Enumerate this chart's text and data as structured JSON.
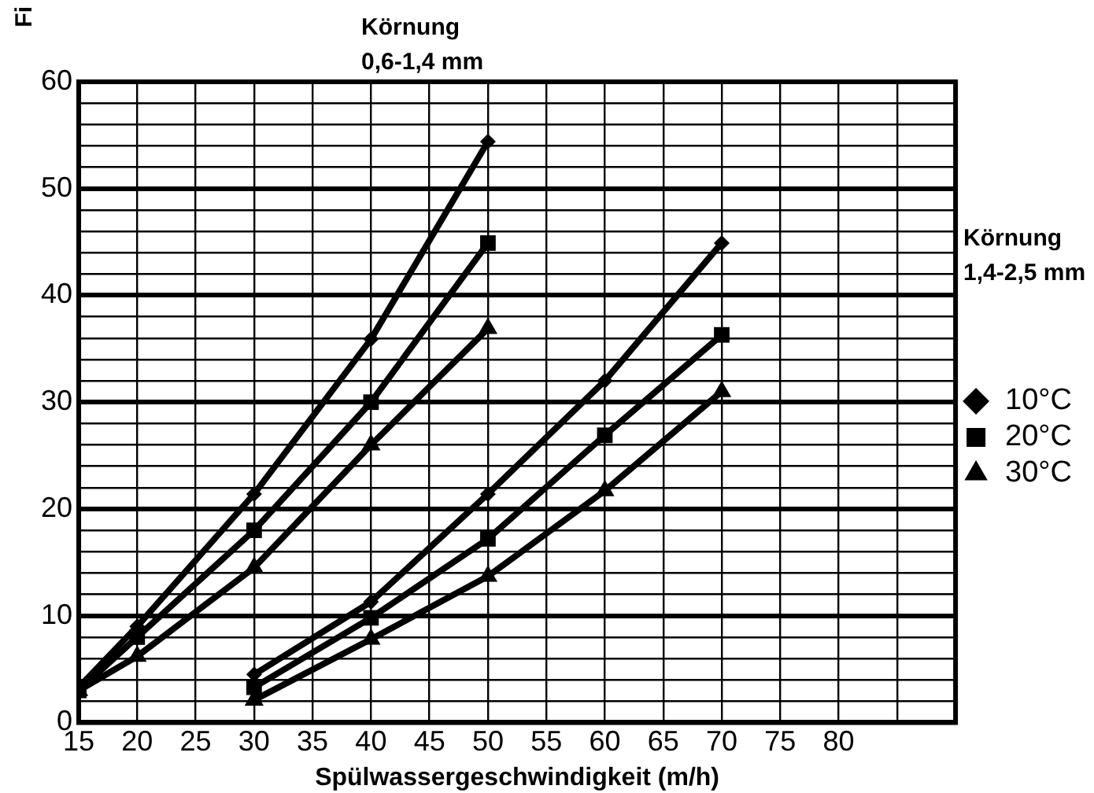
{
  "chart_data": {
    "type": "line",
    "ylabel": "Fi",
    "xlabel": "Spülwassergeschwindigkeit (m/h)",
    "annotations": [
      "Körnung 0,6-1,4 mm",
      "Körnung 1,4-2,5 mm"
    ],
    "xlim": [
      15,
      90
    ],
    "ylim": [
      0,
      60
    ],
    "xticks": [
      15,
      20,
      25,
      30,
      35,
      40,
      45,
      50,
      55,
      60,
      65,
      70,
      75,
      80,
      {
        "value": 85,
        "label": null
      },
      {
        "value": 90,
        "label": null
      }
    ],
    "yticks": [
      0,
      {
        "value": 2,
        "label": null
      },
      {
        "value": 4,
        "label": null
      },
      {
        "value": 6,
        "label": null
      },
      {
        "value": 8,
        "label": null
      },
      10,
      {
        "value": 12,
        "label": null
      },
      {
        "value": 14,
        "label": null
      },
      {
        "value": 16,
        "label": null
      },
      {
        "value": 18,
        "label": null
      },
      20,
      {
        "value": 22,
        "label": null
      },
      {
        "value": 24,
        "label": null
      },
      {
        "value": 26,
        "label": null
      },
      {
        "value": 28,
        "label": null
      },
      30,
      {
        "value": 32,
        "label": null
      },
      {
        "value": 34,
        "label": null
      },
      {
        "value": 36,
        "label": null
      },
      {
        "value": 38,
        "label": null
      },
      40,
      {
        "value": 42,
        "label": null
      },
      {
        "value": 44,
        "label": null
      },
      {
        "value": 46,
        "label": null
      },
      {
        "value": 48,
        "label": null
      },
      50,
      {
        "value": 52,
        "label": null
      },
      {
        "value": 54,
        "label": null
      },
      {
        "value": 56,
        "label": null
      },
      {
        "value": 58,
        "label": null
      },
      60
    ],
    "grid": true,
    "legend": "right",
    "line_style": "solid",
    "series": [
      {
        "name": "10°C",
        "color": "#000000",
        "marker": "diamond",
        "x": [
          15,
          20,
          30,
          40,
          50
        ],
        "values": [
          3.3,
          9.0,
          21.4,
          35.9,
          54.4
        ]
      },
      {
        "name": "20°C",
        "color": "#000000",
        "marker": "square",
        "x": [
          15,
          20,
          30,
          40,
          50
        ],
        "values": [
          3.0,
          8.0,
          18.0,
          30.0,
          44.9
        ]
      },
      {
        "name": "30°C",
        "color": "#000000",
        "marker": "triangle",
        "x": [
          15,
          20,
          30,
          40,
          50
        ],
        "values": [
          3.0,
          6.2,
          14.5,
          26.0,
          36.9
        ]
      },
      {
        "color": "#000000",
        "marker": "diamond",
        "x": [
          30,
          40,
          50,
          60,
          70
        ],
        "values": [
          4.5,
          11.3,
          21.4,
          32.0,
          44.9
        ]
      },
      {
        "color": "#000000",
        "marker": "square",
        "x": [
          30,
          40,
          50,
          60,
          70
        ],
        "values": [
          3.3,
          9.8,
          17.2,
          26.9,
          36.3
        ]
      },
      {
        "color": "#000000",
        "marker": "triangle",
        "x": [
          30,
          40,
          50,
          60,
          70
        ],
        "values": [
          2.1,
          7.8,
          13.7,
          21.7,
          31.0
        ]
      }
    ]
  }
}
